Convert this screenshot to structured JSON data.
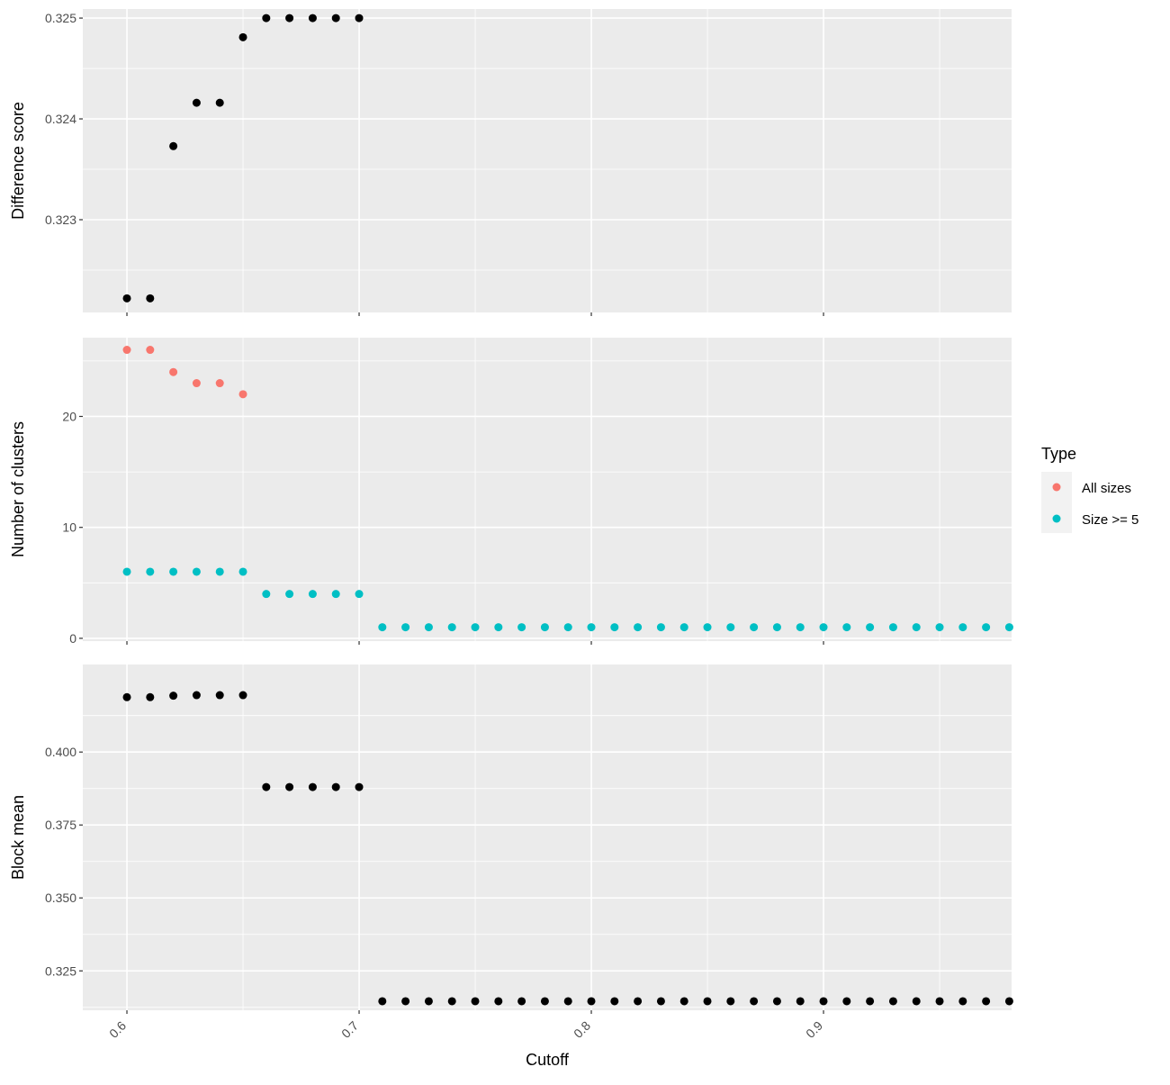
{
  "colors": {
    "panel_background": "#EBEBEB",
    "grid_major": "#FFFFFF",
    "points_default": "#000000",
    "all_sizes": "#F8766D",
    "size_ge_5": "#00BFC4"
  },
  "chart_data": [
    {
      "type": "scatter",
      "panel": "top",
      "ylabel": "Difference score",
      "xlim": [
        0.581,
        0.981
      ],
      "ylim": [
        0.32208,
        0.32509
      ],
      "yticks": [
        0.323,
        0.324,
        0.325
      ],
      "ytick_labels": [
        "0.323",
        "0.324",
        "0.325"
      ],
      "grid": true,
      "series": [
        {
          "color": "#000000",
          "x": [
            0.6,
            0.61,
            0.62,
            0.63,
            0.64,
            0.65,
            0.66,
            0.67,
            0.68,
            0.69,
            0.7
          ],
          "y": [
            0.32222,
            0.32222,
            0.32373,
            0.32416,
            0.32416,
            0.32481,
            0.325,
            0.325,
            0.325,
            0.325,
            0.325
          ]
        }
      ]
    },
    {
      "type": "scatter",
      "panel": "middle",
      "ylabel": "Number of clusters",
      "xlim": [
        0.581,
        0.981
      ],
      "ylim": [
        -0.25,
        27.1
      ],
      "yticks": [
        0,
        10,
        20
      ],
      "ytick_labels": [
        "0",
        "10",
        "20"
      ],
      "grid": true,
      "series": [
        {
          "name": "All sizes",
          "color": "#F8766D",
          "x": [
            0.6,
            0.61,
            0.62,
            0.63,
            0.64,
            0.65
          ],
          "y": [
            26,
            26,
            24,
            23,
            23,
            22
          ]
        },
        {
          "name": "Size >= 5",
          "color": "#00BFC4",
          "x": [
            0.6,
            0.61,
            0.62,
            0.63,
            0.64,
            0.65,
            0.66,
            0.67,
            0.68,
            0.69,
            0.7,
            0.71,
            0.72,
            0.73,
            0.74,
            0.75,
            0.76,
            0.77,
            0.78,
            0.79,
            0.8,
            0.81,
            0.82,
            0.83,
            0.84,
            0.85,
            0.86,
            0.87,
            0.88,
            0.89,
            0.9,
            0.91,
            0.92,
            0.93,
            0.94,
            0.95,
            0.96,
            0.97,
            0.98
          ],
          "y": [
            6,
            6,
            6,
            6,
            6,
            6,
            4,
            4,
            4,
            4,
            4,
            1,
            1,
            1,
            1,
            1,
            1,
            1,
            1,
            1,
            1,
            1,
            1,
            1,
            1,
            1,
            1,
            1,
            1,
            1,
            1,
            1,
            1,
            1,
            1,
            1,
            1,
            1,
            1
          ]
        }
      ]
    },
    {
      "type": "scatter",
      "panel": "bottom",
      "ylabel": "Block mean",
      "xlabel": "Cutoff",
      "xlim": [
        0.581,
        0.981
      ],
      "ylim": [
        0.3115,
        0.43
      ],
      "yticks": [
        0.325,
        0.35,
        0.375,
        0.4
      ],
      "ytick_labels": [
        "0.325",
        "0.350",
        "0.375",
        "0.400"
      ],
      "xticks": [
        0.6,
        0.7,
        0.8,
        0.9
      ],
      "xtick_labels": [
        "0.6",
        "0.7",
        "0.8",
        "0.9"
      ],
      "grid": true,
      "series": [
        {
          "color": "#000000",
          "x": [
            0.6,
            0.61,
            0.62,
            0.63,
            0.64,
            0.65,
            0.66,
            0.67,
            0.68,
            0.69,
            0.7,
            0.71,
            0.72,
            0.73,
            0.74,
            0.75,
            0.76,
            0.77,
            0.78,
            0.79,
            0.8,
            0.81,
            0.82,
            0.83,
            0.84,
            0.85,
            0.86,
            0.87,
            0.88,
            0.89,
            0.9,
            0.91,
            0.92,
            0.93,
            0.94,
            0.95,
            0.96,
            0.97,
            0.98
          ],
          "y": [
            0.4188,
            0.4188,
            0.4193,
            0.4195,
            0.4195,
            0.4195,
            0.388,
            0.388,
            0.388,
            0.388,
            0.388,
            0.3146,
            0.3146,
            0.3146,
            0.3146,
            0.3146,
            0.3146,
            0.3146,
            0.3146,
            0.3146,
            0.3146,
            0.3146,
            0.3146,
            0.3146,
            0.3146,
            0.3146,
            0.3146,
            0.3146,
            0.3146,
            0.3146,
            0.3146,
            0.3146,
            0.3146,
            0.3146,
            0.3146,
            0.3146,
            0.3146,
            0.3146,
            0.3146
          ]
        }
      ]
    }
  ],
  "legend": {
    "title": "Type",
    "placement": "right",
    "items": [
      {
        "label": "All sizes",
        "color": "#F8766D"
      },
      {
        "label": "Size >= 5",
        "color": "#00BFC4"
      }
    ]
  }
}
